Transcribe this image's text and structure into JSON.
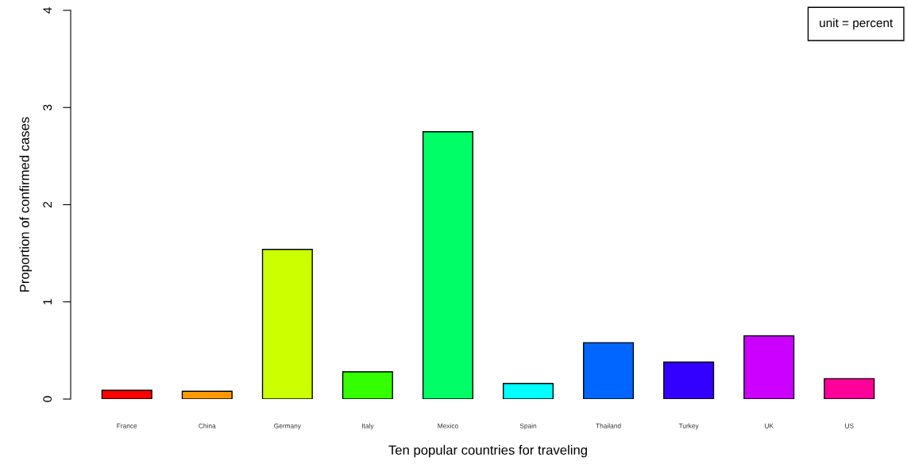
{
  "chart_data": {
    "type": "bar",
    "xlabel": "Ten popular countries for traveling",
    "ylabel": "Proportion of confirmed cases",
    "categories": [
      "France",
      "China",
      "Germany",
      "Italy",
      "Mexico",
      "Spain",
      "Thailand",
      "Turkey",
      "UK",
      "US"
    ],
    "values": [
      0.09,
      0.08,
      1.54,
      0.28,
      2.75,
      0.16,
      0.58,
      0.38,
      0.65,
      0.21
    ],
    "colors": [
      "#ff0000",
      "#ff9900",
      "#ccff00",
      "#33ff00",
      "#00ff66",
      "#00ffff",
      "#0066ff",
      "#3300ff",
      "#cc00ff",
      "#ff0099"
    ],
    "ylim": [
      0,
      4
    ],
    "yticks": [
      0,
      1,
      2,
      3,
      4
    ],
    "grid": false,
    "legend": false,
    "annotations": [
      "unit = percent"
    ]
  }
}
